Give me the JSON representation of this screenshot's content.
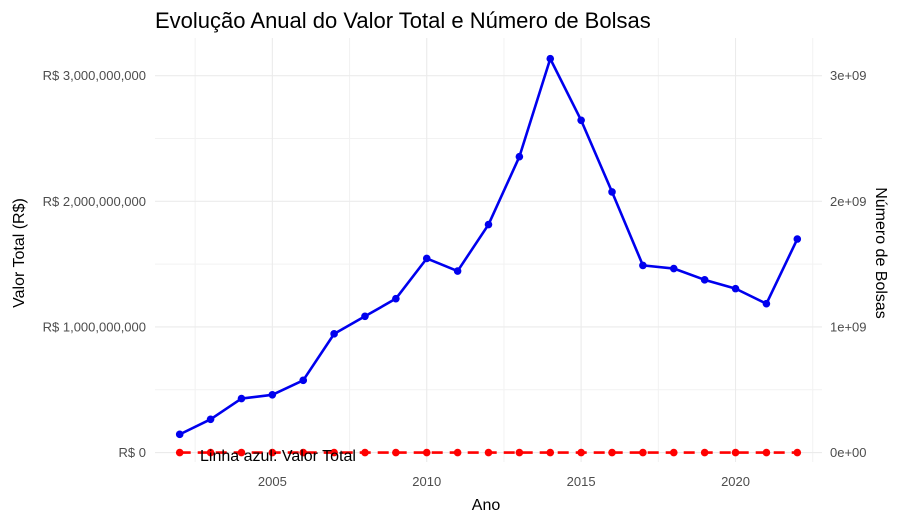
{
  "chart_data": {
    "type": "line",
    "title": "Evolução Anual do Valor Total e Número de Bolsas",
    "xlabel": "Ano",
    "ylabel_left": "Valor Total (R$)",
    "ylabel_right": "Número de Bolsas",
    "xlim": [
      2001.2,
      2022.8
    ],
    "ylim": [
      -75000000,
      3300000000
    ],
    "x_ticks": [
      2005,
      2010,
      2015,
      2020
    ],
    "x_tick_labels": [
      "2005",
      "2010",
      "2015",
      "2020"
    ],
    "y_ticks_left": [
      0,
      1000000000,
      2000000000,
      3000000000
    ],
    "y_tick_labels_left": [
      "R$ 0",
      "R$ 1,000,000,000",
      "R$ 2,000,000,000",
      "R$ 3,000,000,000"
    ],
    "y_ticks_right": [
      0,
      1000000000,
      2000000000,
      3000000000
    ],
    "y_tick_labels_right": [
      "0e+00",
      "1e+09",
      "2e+09",
      "3e+09"
    ],
    "grid": true,
    "annotation": "Linha azul: Valor Total",
    "series": [
      {
        "color": "#0000ee",
        "line_style": "solid",
        "x": [
          2002,
          2003,
          2004,
          2005,
          2006,
          2007,
          2008,
          2009,
          2010,
          2011,
          2012,
          2013,
          2014,
          2015,
          2016,
          2017,
          2018,
          2019,
          2020,
          2021,
          2022
        ],
        "values": [
          145000000,
          265000000,
          430000000,
          460000000,
          575000000,
          945000000,
          1085000000,
          1225000000,
          1545000000,
          1445000000,
          1815000000,
          2355000000,
          3135000000,
          2645000000,
          2075000000,
          1490000000,
          1465000000,
          1375000000,
          1305000000,
          1185000000,
          1700000000
        ]
      },
      {
        "color": "#ff0000",
        "line_style": "dashed",
        "x": [
          2002,
          2003,
          2004,
          2005,
          2006,
          2007,
          2008,
          2009,
          2010,
          2011,
          2012,
          2013,
          2014,
          2015,
          2016,
          2017,
          2018,
          2019,
          2020,
          2021,
          2022
        ],
        "values": [
          0,
          0,
          0,
          0,
          0,
          0,
          0,
          0,
          0,
          0,
          0,
          0,
          0,
          0,
          0,
          0,
          0,
          0,
          0,
          0,
          0
        ]
      }
    ]
  }
}
